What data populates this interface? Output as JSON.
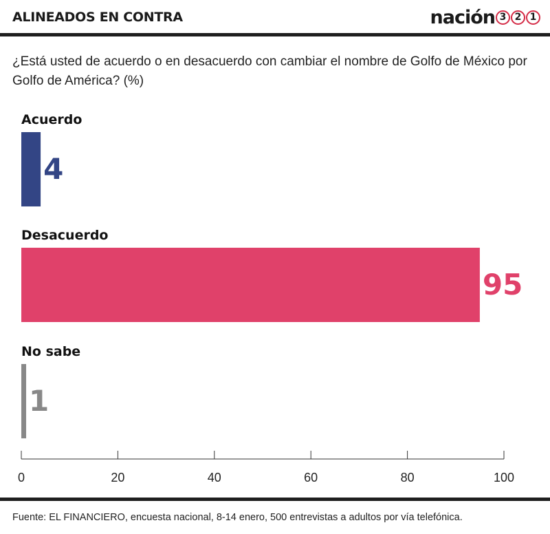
{
  "header": {
    "kicker": "ALINEADOS EN CONTRA",
    "logo_text": "nación",
    "logo_digits": [
      "3",
      "2",
      "1"
    ]
  },
  "question": "¿Está usted de acuerdo o en desacuerdo con cambiar el nombre de Golfo de México por Golfo de América? (%)",
  "source": "Fuente: EL FINANCIERO, encuesta nacional, 8-14 enero, 500 entrevistas a adultos por vía telefónica.",
  "colors": {
    "accent": "#e0416a",
    "acuerdo": "#334585",
    "desacuerdo": "#e0416a",
    "no_sabe": "#888888",
    "rule": "#1f1f1f"
  },
  "chart_data": {
    "type": "bar",
    "orientation": "horizontal",
    "title": "¿Está usted de acuerdo o en desacuerdo con cambiar el nombre de Golfo de México por Golfo de América? (%)",
    "categories": [
      "Acuerdo",
      "Desacuerdo",
      "No sabe"
    ],
    "values": [
      4,
      95,
      1
    ],
    "value_labels": [
      "4",
      "95",
      "1"
    ],
    "colors": [
      "#334585",
      "#e0416a",
      "#888888"
    ],
    "xlim": [
      0,
      100
    ],
    "x_ticks": [
      0,
      20,
      40,
      60,
      80,
      100
    ],
    "x_tick_labels": [
      "0",
      "20",
      "40",
      "60",
      "80",
      "100"
    ],
    "grid": false,
    "legend": "none"
  }
}
